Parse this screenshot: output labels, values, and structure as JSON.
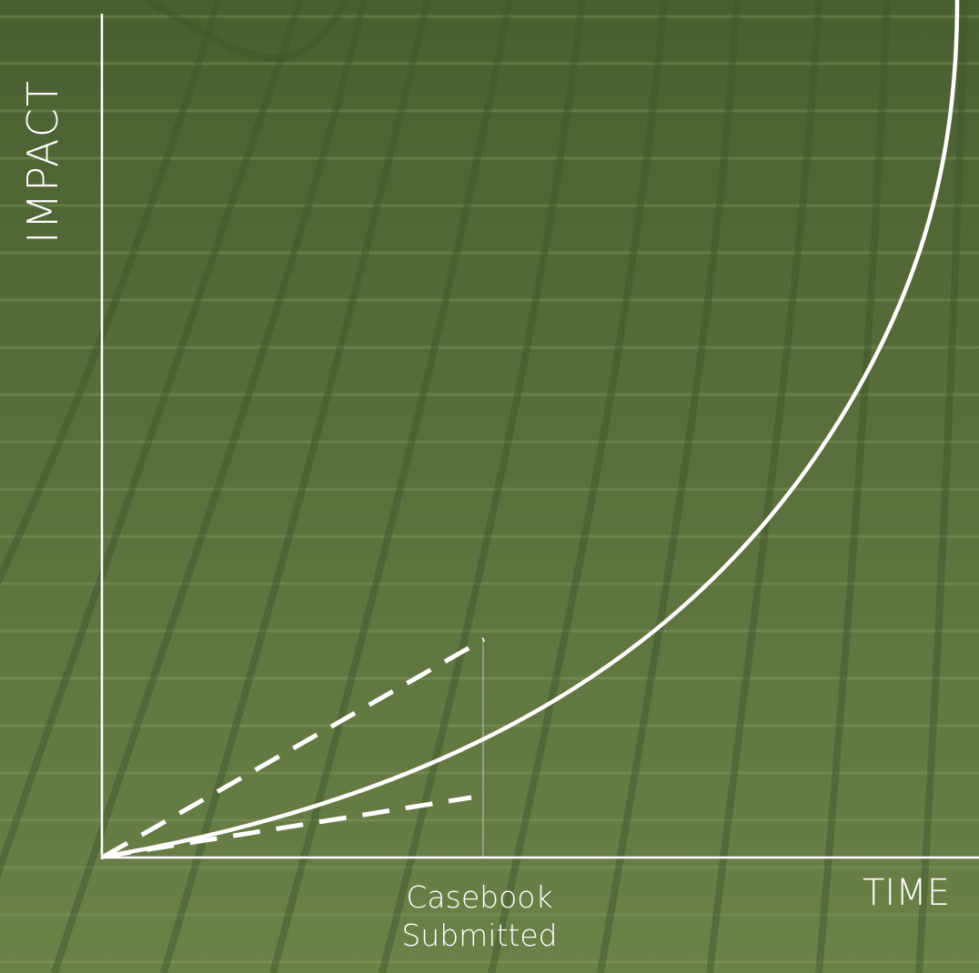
{
  "background": {
    "top_color": "#4a5f30",
    "bottom_color": "#6c8148",
    "stripe_color": "#8da46b",
    "curve_color": "#3f542a"
  },
  "colors": {
    "ink": "#ffffff"
  },
  "diagram": {
    "y_axis_label": "IMPACT",
    "x_axis_label": "TIME",
    "marker_label": "Casebook Submitted"
  }
}
